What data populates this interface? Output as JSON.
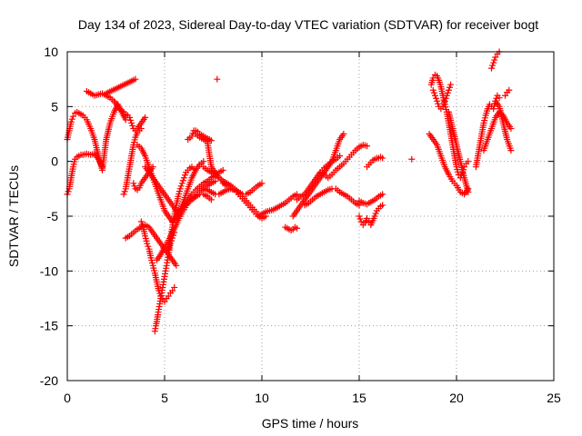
{
  "chart_data": {
    "type": "scatter",
    "title": "Day 134 of 2023, Sidereal Day-to-day VTEC variation (SDTVAR) for receiver bogt",
    "xlabel": "GPS time / hours",
    "ylabel": "SDTVAR / TECUs",
    "xlim": [
      0,
      25
    ],
    "ylim": [
      -20,
      10
    ],
    "xticks": [
      "0",
      "5",
      "10",
      "15",
      "20",
      "25"
    ],
    "yticks": [
      "-20",
      "-15",
      "-10",
      "-5",
      "0",
      "5",
      "10"
    ],
    "grid": true,
    "marker": "plus",
    "color": "#ff0000",
    "series": [
      {
        "x": [
          0,
          0.1,
          0.2,
          0.3,
          0.4,
          0.5,
          0.6,
          0.8,
          1.0,
          1.2,
          1.4,
          1.6,
          1.8,
          2.0,
          2.2,
          2.4,
          2.6,
          2.8,
          3.0
        ],
        "y": [
          2.0,
          2.8,
          3.6,
          4.1,
          4.4,
          4.5,
          4.4,
          4.2,
          3.8,
          3.0,
          2.0,
          0.5,
          -0.8,
          2.0,
          3.5,
          4.5,
          5.2,
          4.5,
          3.8
        ]
      },
      {
        "x": [
          0,
          0.1,
          0.2,
          0.3,
          0.4,
          0.5,
          0.6,
          0.7,
          0.8,
          1.0,
          1.2,
          1.4,
          1.6,
          1.8
        ],
        "y": [
          -3.0,
          -2.5,
          -1.5,
          -0.5,
          0.2,
          0.4,
          0.5,
          0.6,
          0.6,
          0.7,
          0.6,
          0.7,
          0.2,
          -0.5
        ]
      },
      {
        "x": [
          1.0,
          1.2,
          1.4,
          1.6,
          1.8,
          2.0,
          2.2,
          2.4,
          2.6,
          2.8
        ],
        "y": [
          6.4,
          6.2,
          6.0,
          6.1,
          6.2,
          6.0,
          5.8,
          5.5,
          5.0,
          4.6
        ]
      },
      {
        "x": [
          2.9,
          3.0,
          3.1,
          3.2,
          3.3,
          3.4,
          3.5,
          3.6,
          3.8,
          4.0
        ],
        "y": [
          4.5,
          4.3,
          4.2,
          4.0,
          3.5,
          3.0,
          2.8,
          3.0,
          3.5,
          4.0
        ]
      },
      {
        "x": [
          2.9,
          3.0,
          3.1,
          3.2,
          3.3,
          3.4,
          3.5,
          3.6,
          3.7,
          3.8
        ],
        "y": [
          -3.0,
          -2.5,
          -1.5,
          -0.5,
          0.5,
          1.5,
          2.2,
          2.6,
          2.8,
          3.0
        ]
      },
      {
        "x": [
          3.0,
          3.2,
          3.4,
          3.6,
          3.8,
          4.0,
          4.2,
          4.4,
          4.6,
          4.8,
          5.0,
          5.2,
          5.4,
          5.6
        ],
        "y": [
          -7.0,
          -6.8,
          -6.5,
          -6.2,
          -6.0,
          -5.8,
          -6.0,
          -6.5,
          -7.0,
          -7.5,
          -8.0,
          -8.5,
          -9.0,
          -9.5
        ]
      },
      {
        "x": [
          3.4,
          3.5,
          3.6,
          3.7,
          3.8,
          4.0,
          4.2,
          4.4
        ],
        "y": [
          -2.0,
          -2.5,
          -2.6,
          -2.4,
          -2.0,
          -1.5,
          -1.0,
          -0.5
        ]
      },
      {
        "x": [
          3.8,
          3.9,
          4.0,
          4.1,
          4.2,
          4.3,
          4.4,
          4.5,
          4.6,
          4.7,
          4.8,
          4.9,
          5.0,
          5.1,
          5.2,
          5.3,
          5.4,
          5.5
        ],
        "y": [
          -5.5,
          -6.0,
          -6.8,
          -7.5,
          -8.0,
          -8.8,
          -9.5,
          -10.2,
          -11.0,
          -11.8,
          -12.3,
          -12.6,
          -12.8,
          -12.5,
          -12.3,
          -12.0,
          -11.8,
          -11.5
        ]
      },
      {
        "x": [
          4.5,
          4.55,
          4.6,
          4.65,
          4.7,
          4.75,
          4.8,
          4.85,
          4.9,
          4.95,
          5.0,
          5.05,
          5.1,
          5.15,
          5.2,
          5.3,
          5.4,
          5.5
        ],
        "y": [
          -15.5,
          -15.0,
          -14.6,
          -14.0,
          -13.5,
          -13.0,
          -12.5,
          -12.0,
          -11.5,
          -11.0,
          -10.5,
          -10.0,
          -9.5,
          -9.0,
          -8.5,
          -7.5,
          -7.0,
          -6.5
        ]
      },
      {
        "x": [
          3.6,
          3.8,
          4.0,
          4.2,
          4.4,
          4.6,
          4.8,
          5.0,
          5.2,
          5.4,
          5.6,
          5.8,
          6.0,
          6.2,
          6.4,
          6.6,
          6.8,
          7.0
        ],
        "y": [
          1.5,
          1.2,
          0.5,
          -0.5,
          -1.5,
          -2.5,
          -3.5,
          -4.5,
          -5.0,
          -5.5,
          -5.2,
          -4.5,
          -3.5,
          -2.5,
          -1.5,
          -0.8,
          -0.3,
          0.0
        ]
      },
      {
        "x": [
          4.0,
          4.2,
          4.4,
          4.6,
          4.8,
          5.0,
          5.2,
          5.4,
          5.6,
          5.8
        ],
        "y": [
          -0.5,
          -1.0,
          -1.5,
          -2.0,
          -2.5,
          -3.0,
          -3.5,
          -4.0,
          -4.5,
          -5.0
        ]
      },
      {
        "x": [
          4.6,
          4.8,
          5.0,
          5.2,
          5.4,
          5.6,
          5.8,
          6.0,
          6.2,
          6.4,
          6.6,
          6.8,
          7.0,
          7.2,
          7.4
        ],
        "y": [
          -9.0,
          -8.5,
          -7.8,
          -7.2,
          -6.5,
          -5.8,
          -5.0,
          -4.4,
          -3.8,
          -3.4,
          -3.2,
          -3.0,
          -3.0,
          -3.2,
          -3.5
        ]
      },
      {
        "x": [
          5.2,
          5.3,
          5.4,
          5.5,
          5.6,
          5.7,
          5.8,
          5.9,
          6.0,
          6.1,
          6.2,
          6.3,
          6.4,
          6.5
        ],
        "y": [
          -8.0,
          -7.0,
          -6.0,
          -5.0,
          -4.0,
          -3.2,
          -2.5,
          -2.0,
          -1.5,
          -1.0,
          -0.8,
          -0.6,
          -0.5,
          -0.7
        ]
      },
      {
        "x": [
          5.4,
          5.6,
          5.8,
          6.0,
          6.2,
          6.4,
          6.6,
          6.8,
          7.0,
          7.2,
          7.4,
          7.6,
          7.8,
          8.0
        ],
        "y": [
          -5.5,
          -5.0,
          -4.5,
          -4.0,
          -3.5,
          -3.0,
          -2.6,
          -2.3,
          -2.0,
          -1.8,
          -1.5,
          -1.3,
          -1.0,
          -0.8
        ]
      },
      {
        "x": [
          6.0,
          6.2,
          6.4,
          6.6,
          6.8,
          7.0,
          7.2,
          7.4,
          7.6
        ],
        "y": [
          -4.0,
          -3.8,
          -3.5,
          -3.2,
          -2.8,
          -2.5,
          -2.2,
          -2.0,
          -1.8
        ]
      },
      {
        "x": [
          6.2,
          6.4,
          6.5,
          6.6,
          6.8,
          7.0,
          7.2,
          7.4,
          7.6,
          7.8,
          8.0,
          8.2
        ],
        "y": [
          2.0,
          2.3,
          2.8,
          2.5,
          2.2,
          2.0,
          1.8,
          -0.5,
          -1.0,
          -1.5,
          -1.8,
          -2.0
        ]
      },
      {
        "x": [
          6.6,
          6.7,
          6.8,
          6.9,
          7.0,
          7.1,
          7.2,
          7.3,
          7.4
        ],
        "y": [
          2.8,
          2.7,
          2.5,
          2.4,
          2.3,
          2.2,
          2.1,
          2.0,
          1.9
        ]
      },
      {
        "x": [
          7.0,
          7.2,
          7.4,
          7.6,
          7.8,
          8.0,
          8.2,
          8.4,
          8.6,
          8.8,
          9.0,
          9.2,
          9.4,
          9.6,
          9.8,
          10.0
        ],
        "y": [
          -0.5,
          -0.8,
          -1.0,
          -1.2,
          -1.5,
          -1.8,
          -2.0,
          -2.2,
          -2.5,
          -2.8,
          -3.2,
          -3.6,
          -4.0,
          -4.4,
          -4.8,
          -5.0
        ]
      },
      {
        "x": [
          7.0,
          7.2,
          7.4,
          7.6,
          7.8,
          8.0,
          8.2,
          8.4,
          8.6,
          8.8,
          9.0,
          9.2,
          9.4,
          9.6,
          9.8,
          10.0
        ],
        "y": [
          -2.5,
          -2.6,
          -2.8,
          -3.0,
          -3.0,
          -2.8,
          -2.6,
          -2.5,
          -2.6,
          -2.8,
          -3.0,
          -3.0,
          -2.8,
          -2.5,
          -2.2,
          -2.0
        ]
      },
      {
        "x": [
          8.0,
          8.2,
          8.4,
          8.6,
          8.8,
          9.0,
          9.2,
          9.4,
          9.6,
          9.8,
          10.0,
          10.2
        ],
        "y": [
          -2.0,
          -2.2,
          -2.5,
          -2.6,
          -3.0,
          -3.4,
          -3.8,
          -4.2,
          -4.6,
          -5.0,
          -5.2,
          -5.0
        ]
      },
      {
        "x": [
          10.0,
          10.2,
          10.4,
          10.6,
          10.8,
          11.0,
          11.2,
          11.4,
          11.6,
          11.8
        ],
        "y": [
          -4.8,
          -4.6,
          -4.5,
          -4.4,
          -4.2,
          -4.0,
          -3.8,
          -3.5,
          -3.2,
          -3.0
        ]
      },
      {
        "x": [
          11.2,
          11.3,
          11.4,
          11.5,
          11.6,
          11.7,
          11.8
        ],
        "y": [
          -6.0,
          -6.1,
          -6.2,
          -6.3,
          -6.2,
          -6.0,
          -6.1
        ]
      },
      {
        "x": [
          11.6,
          11.8,
          12.0,
          12.2,
          12.4,
          12.6,
          12.8,
          13.0,
          13.2,
          13.4,
          13.6,
          13.8,
          14.0,
          14.2
        ],
        "y": [
          -5.0,
          -4.5,
          -4.0,
          -3.5,
          -3.0,
          -2.5,
          -2.0,
          -1.5,
          -1.0,
          -0.5,
          0.0,
          1.0,
          2.0,
          2.5
        ]
      },
      {
        "x": [
          11.8,
          12.0,
          12.2,
          12.4,
          12.6,
          12.8,
          13.0,
          13.2,
          13.4,
          13.6,
          13.8,
          14.0
        ],
        "y": [
          -3.5,
          -3.2,
          -3.0,
          -2.5,
          -2.0,
          -1.5,
          -1.0,
          -0.6,
          -0.3,
          0.0,
          0.2,
          0.5
        ]
      },
      {
        "x": [
          12.2,
          12.4,
          12.6,
          12.8,
          13.0,
          13.2,
          13.4,
          13.6,
          13.8,
          14.0,
          14.2,
          14.4,
          14.6,
          14.8,
          15.0
        ],
        "y": [
          -4.0,
          -3.8,
          -3.5,
          -3.2,
          -3.0,
          -2.8,
          -2.6,
          -2.5,
          -2.5,
          -2.8,
          -3.0,
          -3.2,
          -3.5,
          -3.8,
          -4.0
        ]
      },
      {
        "x": [
          13.0,
          13.2,
          13.4,
          13.6,
          13.8,
          14.0,
          14.2,
          14.4,
          14.6,
          14.8,
          15.0,
          15.2,
          15.4
        ],
        "y": [
          -1.0,
          -1.2,
          -1.5,
          -1.2,
          -0.8,
          -0.5,
          -0.2,
          0.2,
          0.6,
          1.0,
          1.3,
          1.5,
          1.4
        ]
      },
      {
        "x": [
          15.0,
          15.1,
          15.2,
          15.3,
          15.4,
          15.5,
          15.6,
          15.7,
          15.8,
          15.9,
          16.0,
          16.1,
          16.2
        ],
        "y": [
          -5.0,
          -5.5,
          -5.8,
          -5.6,
          -5.2,
          -5.5,
          -5.8,
          -5.4,
          -5.0,
          -4.5,
          -4.3,
          -4.1,
          -4.0
        ]
      },
      {
        "x": [
          15.0,
          15.2,
          15.4,
          15.6,
          15.8,
          16.0,
          16.2
        ],
        "y": [
          -3.6,
          -3.8,
          -3.9,
          -3.7,
          -3.5,
          -3.2,
          -3.0
        ]
      },
      {
        "x": [
          15.4,
          15.5,
          15.6,
          15.7,
          15.8,
          15.9,
          16.0,
          16.1,
          16.2
        ],
        "y": [
          -0.5,
          -0.3,
          -0.1,
          0.1,
          0.2,
          0.3,
          0.3,
          0.4,
          0.3
        ]
      },
      {
        "x": [
          18.6,
          18.8,
          19.0,
          19.2,
          19.4,
          19.6,
          19.8,
          20.0,
          20.2,
          20.4,
          20.6
        ],
        "y": [
          2.5,
          2.0,
          1.5,
          0.5,
          -0.5,
          -1.2,
          -1.8,
          -2.2,
          -2.8,
          -3.0,
          -2.5
        ]
      },
      {
        "x": [
          18.7,
          18.8,
          18.9,
          19.0,
          19.1,
          19.2,
          19.3,
          19.4,
          19.5,
          19.6,
          19.7,
          19.8,
          19.9,
          20.0,
          20.1,
          20.2,
          20.3,
          20.4,
          20.5,
          20.6
        ],
        "y": [
          7.0,
          7.6,
          7.9,
          7.8,
          7.4,
          6.8,
          6.0,
          5.2,
          4.5,
          3.5,
          2.5,
          1.5,
          0.5,
          -0.5,
          -1.2,
          -1.5,
          -1.0,
          -0.5,
          -0.2,
          0.0
        ]
      },
      {
        "x": [
          18.8,
          18.9,
          19.0,
          19.1,
          19.2,
          19.3,
          19.4,
          19.5,
          19.6,
          19.7
        ],
        "y": [
          6.5,
          6.0,
          5.5,
          5.0,
          4.8,
          5.0,
          5.5,
          6.0,
          6.5,
          7.0
        ]
      },
      {
        "x": [
          19.6,
          19.8,
          20.0,
          20.2,
          20.4,
          20.6
        ],
        "y": [
          4.5,
          3.0,
          1.5,
          0.0,
          -1.5,
          -2.8
        ]
      },
      {
        "x": [
          21.0,
          21.1,
          21.2,
          21.3,
          21.4,
          21.5,
          21.6,
          21.7,
          21.8,
          21.9,
          22.0,
          22.1,
          22.2
        ],
        "y": [
          -0.5,
          0.5,
          1.5,
          2.5,
          3.5,
          4.2,
          4.8,
          5.2,
          5.0,
          4.8,
          5.5,
          6.0,
          5.8
        ]
      },
      {
        "x": [
          21.4,
          21.6,
          21.8,
          22.0,
          22.2,
          22.4,
          22.6,
          22.8
        ],
        "y": [
          1.0,
          2.0,
          3.0,
          4.0,
          4.5,
          4.2,
          3.5,
          3.0
        ]
      },
      {
        "x": [
          22.0,
          22.2,
          22.4,
          22.6,
          22.8
        ],
        "y": [
          5.5,
          5.0,
          3.5,
          2.0,
          1.0
        ]
      },
      {
        "x": [
          21.8,
          21.9,
          22.0,
          22.1,
          22.2
        ],
        "y": [
          8.5,
          9.0,
          9.5,
          9.8,
          10.0
        ]
      },
      {
        "x": [
          22.5,
          22.6,
          22.7
        ],
        "y": [
          6.0,
          6.3,
          6.5
        ]
      },
      {
        "x": [
          2.0,
          3.5,
          7.7,
          17.7
        ],
        "y": [
          6.2,
          7.5,
          7.5,
          0.2
        ]
      }
    ]
  }
}
